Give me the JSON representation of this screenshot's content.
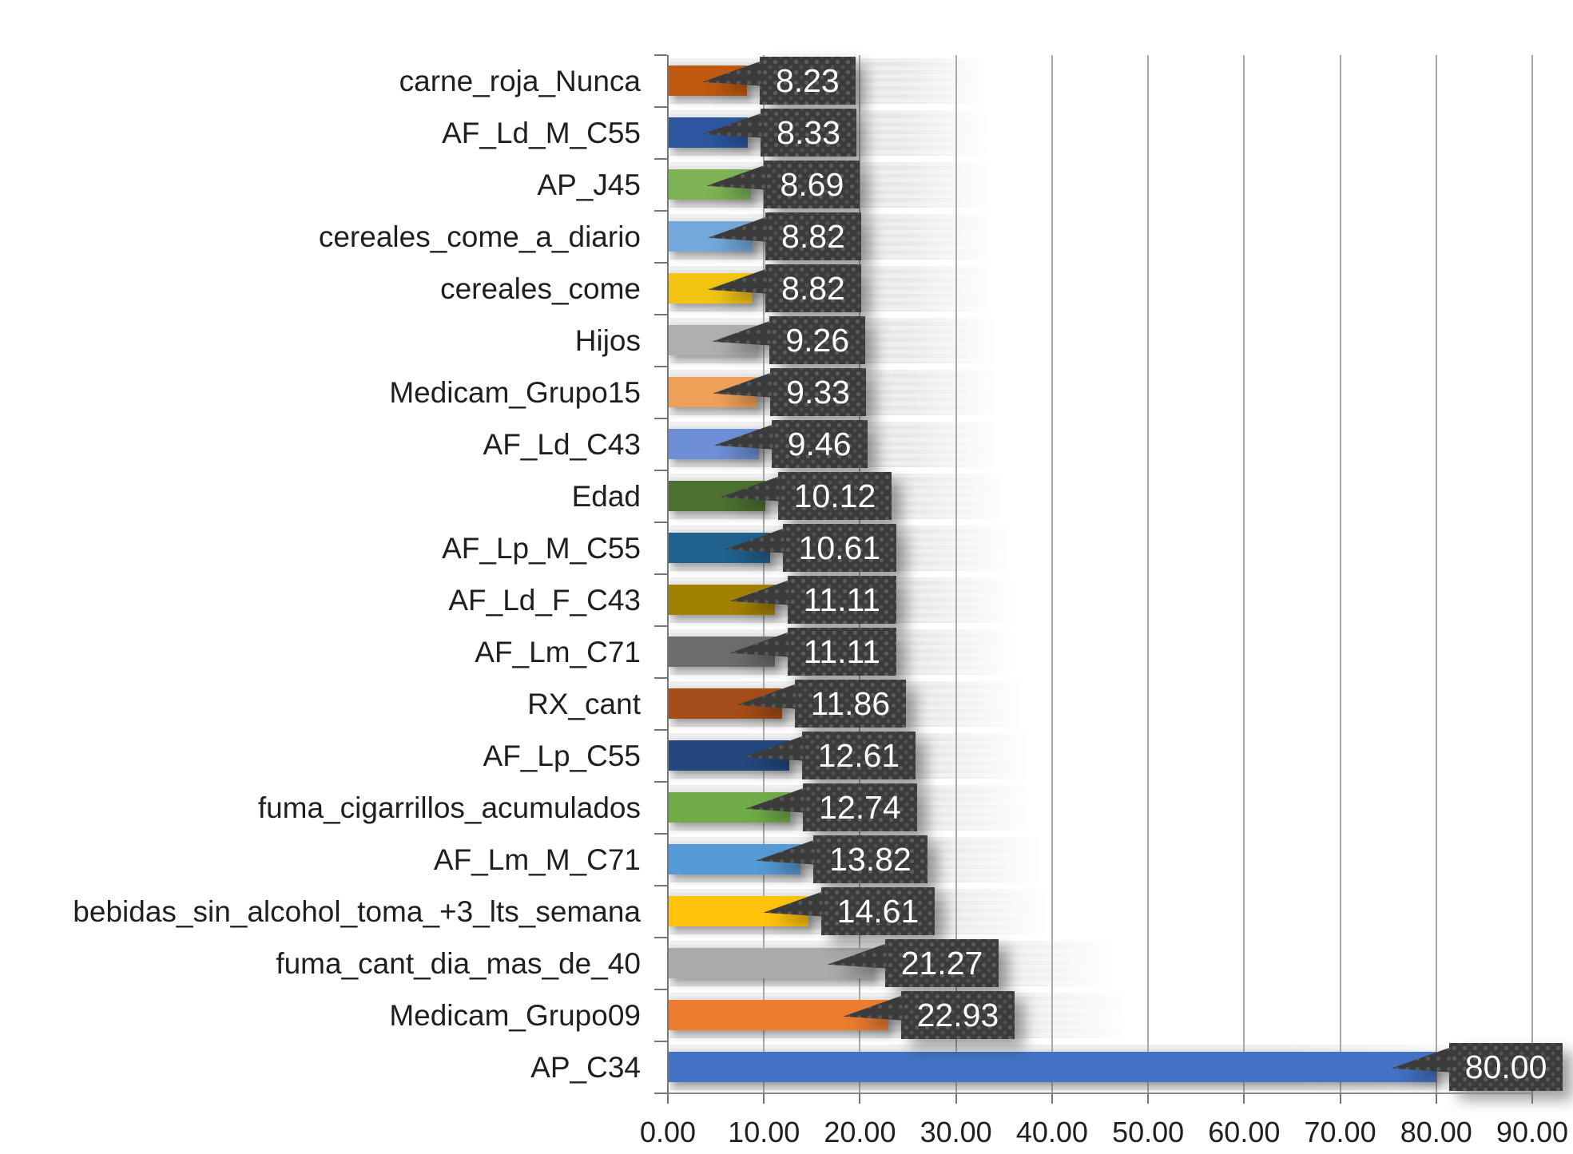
{
  "chart_data": {
    "type": "bar",
    "orientation": "horizontal",
    "title": "",
    "xlabel": "",
    "ylabel": "",
    "xlim": [
      0,
      90
    ],
    "x_tick_step": 10,
    "x_tick_labels": [
      "0.00",
      "10.00",
      "20.00",
      "30.00",
      "40.00",
      "50.00",
      "60.00",
      "70.00",
      "80.00",
      "90.00"
    ],
    "grid": "vertical",
    "legend": "none",
    "categories": [
      "carne_roja_Nunca",
      "AF_Ld_M_C55",
      "AP_J45",
      "cereales_come_a_diario",
      "cereales_come",
      "Hijos",
      "Medicam_Grupo15",
      "AF_Ld_C43",
      "Edad",
      "AF_Lp_M_C55",
      "AF_Ld_F_C43",
      "AF_Lm_C71",
      "RX_cant",
      "AF_Lp_C55",
      "fuma_cigarrillos_acumulados",
      "AF_Lm_M_C71",
      "bebidas_sin_alcohol_toma_+3_lts_semana",
      "fuma_cant_dia_mas_de_40",
      "Medicam_Grupo09",
      "AP_C34"
    ],
    "values": [
      8.23,
      8.33,
      8.69,
      8.82,
      8.82,
      9.26,
      9.33,
      9.46,
      10.12,
      10.61,
      11.11,
      11.11,
      11.86,
      12.61,
      12.74,
      13.82,
      14.61,
      21.27,
      22.93,
      80.0
    ],
    "value_labels": [
      "8.23",
      "8.33",
      "8.69",
      "8.82",
      "8.82",
      "9.26",
      "9.33",
      "9.46",
      "10.12",
      "10.61",
      "11.11",
      "11.11",
      "11.86",
      "12.61",
      "12.74",
      "13.82",
      "14.61",
      "21.27",
      "22.93",
      "80.00"
    ],
    "bar_colors": [
      "#C05A11",
      "#2C57A0",
      "#7DB356",
      "#74A9DC",
      "#F2C513",
      "#AFAFAF",
      "#F0A159",
      "#6D8FD6",
      "#4C7030",
      "#20618E",
      "#A28000",
      "#6C6C6C",
      "#A44D18",
      "#24477E",
      "#6FAC47",
      "#549AD6",
      "#FFC30B",
      "#ABABAB",
      "#EC7D31",
      "#4472C4"
    ],
    "callout_style": {
      "background": "#3B3B3B",
      "pattern": "polka-dot",
      "text_color": "#FFFFFF"
    },
    "track_color": "#ECECEC",
    "gridline_color": "#A9A9A9",
    "axis_color": "#767676",
    "label_color": "#1F1F1F",
    "plot_background": "#FFFFFF"
  }
}
